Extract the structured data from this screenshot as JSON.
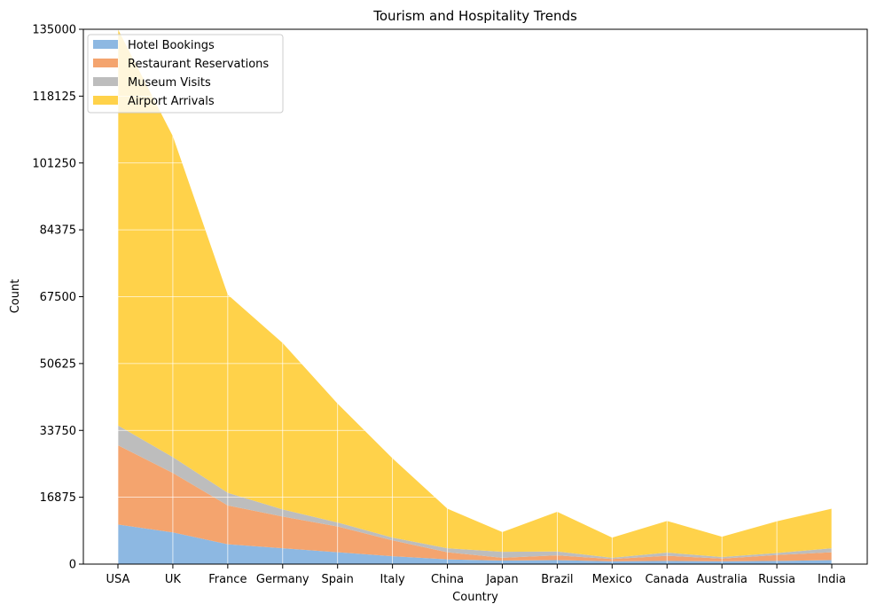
{
  "chart_data": {
    "type": "area",
    "stacked": true,
    "title": "Tourism and Hospitality Trends",
    "xlabel": "Country",
    "ylabel": "Count",
    "ylim": [
      0,
      135000
    ],
    "yticks": [
      "0",
      "16875",
      "33750",
      "50625",
      "67500",
      "84375",
      "101250",
      "118125",
      "135000"
    ],
    "grid": true,
    "legend_position": "top-left",
    "categories": [
      "USA",
      "UK",
      "France",
      "Germany",
      "Spain",
      "Italy",
      "China",
      "Japan",
      "Brazil",
      "Mexico",
      "Canada",
      "Australia",
      "Russia",
      "India"
    ],
    "series": [
      {
        "name": "Hotel Bookings",
        "color": "#8db8e2",
        "values": [
          10000,
          8000,
          5000,
          4000,
          3000,
          2000,
          1200,
          900,
          1000,
          700,
          800,
          700,
          800,
          1000
        ]
      },
      {
        "name": "Restaurant Reservations",
        "color": "#f4a46e",
        "values": [
          20000,
          15000,
          9800,
          8000,
          6500,
          4000,
          1800,
          700,
          1200,
          600,
          1300,
          700,
          1500,
          2000
        ]
      },
      {
        "name": "Museum Visits",
        "color": "#bdbdbd",
        "values": [
          5000,
          4000,
          3200,
          1800,
          1000,
          700,
          1000,
          1500,
          1000,
          300,
          800,
          400,
          500,
          1000
        ]
      },
      {
        "name": "Airport Arrivals",
        "color": "#ffd24a",
        "values": [
          100000,
          81000,
          50000,
          42000,
          30000,
          20000,
          10000,
          5000,
          10000,
          5100,
          8000,
          5100,
          8000,
          10000
        ]
      }
    ]
  }
}
